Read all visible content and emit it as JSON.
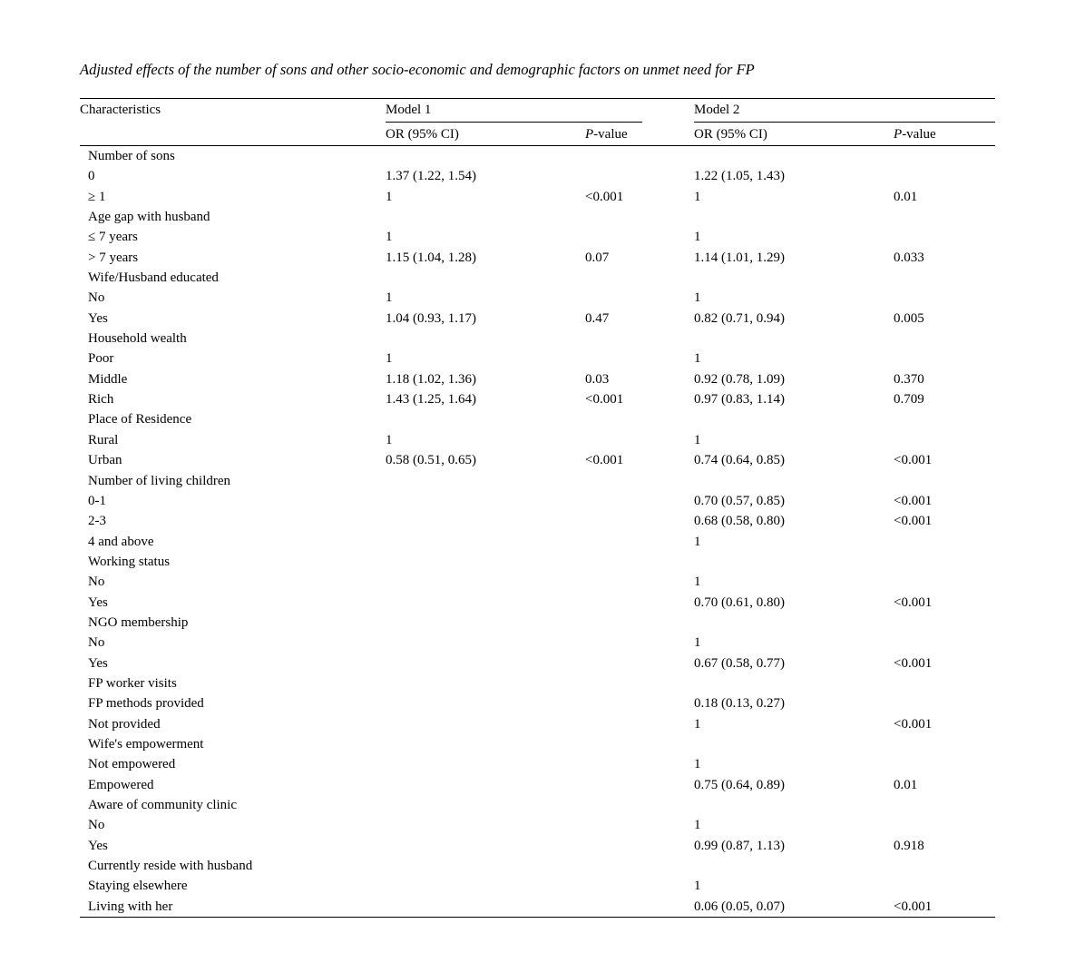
{
  "title": "Adjusted effects of the number of sons and other socio-economic and demographic factors on unmet need for FP",
  "table": {
    "header": {
      "characteristics": "Characteristics",
      "model1": "Model 1",
      "model2": "Model 2",
      "or_ci_1": "OR (95% CI)",
      "or_ci_2": "OR (95% CI)",
      "p_italic": "P",
      "p_rest": "-value"
    },
    "rows": [
      {
        "type": "category",
        "label": "Number of sons",
        "cells": [
          "",
          "",
          "",
          ""
        ]
      },
      {
        "type": "item",
        "label": "0",
        "cells": [
          "1.37 (1.22, 1.54)",
          "",
          "1.22 (1.05, 1.43)",
          ""
        ]
      },
      {
        "type": "item",
        "label": "≥ 1",
        "cells": [
          "1",
          "<0.001",
          "1",
          "0.01"
        ]
      },
      {
        "type": "category",
        "label": "Age gap with husband",
        "cells": [
          "",
          "",
          "",
          ""
        ]
      },
      {
        "type": "item",
        "label": "≤ 7 years",
        "cells": [
          "1",
          "",
          "1",
          ""
        ]
      },
      {
        "type": "item",
        "label": "> 7 years",
        "cells": [
          "1.15 (1.04, 1.28)",
          "0.07",
          "1.14 (1.01, 1.29)",
          "0.033"
        ]
      },
      {
        "type": "category",
        "label": "Wife/Husband educated",
        "cells": [
          "",
          "",
          "",
          ""
        ]
      },
      {
        "type": "item",
        "label": "No",
        "cells": [
          "1",
          "",
          "1",
          ""
        ]
      },
      {
        "type": "item",
        "label": "Yes",
        "cells": [
          "1.04 (0.93, 1.17)",
          "0.47",
          "0.82 (0.71, 0.94)",
          "0.005"
        ]
      },
      {
        "type": "category",
        "label": "Household wealth",
        "cells": [
          "",
          "",
          "",
          ""
        ]
      },
      {
        "type": "item",
        "label": "Poor",
        "cells": [
          "1",
          "",
          "1",
          ""
        ]
      },
      {
        "type": "item",
        "label": "Middle",
        "cells": [
          "1.18 (1.02, 1.36)",
          "0.03",
          "0.92 (0.78, 1.09)",
          "0.370"
        ]
      },
      {
        "type": "item",
        "label": "Rich",
        "cells": [
          "1.43 (1.25, 1.64)",
          "<0.001",
          "0.97 (0.83, 1.14)",
          "0.709"
        ]
      },
      {
        "type": "category",
        "label": "Place of Residence",
        "cells": [
          "",
          "",
          "",
          ""
        ]
      },
      {
        "type": "item",
        "label": "Rural",
        "cells": [
          "1",
          "",
          "1",
          ""
        ]
      },
      {
        "type": "item",
        "label": "Urban",
        "cells": [
          "0.58 (0.51, 0.65)",
          "<0.001",
          "0.74 (0.64, 0.85)",
          "<0.001"
        ]
      },
      {
        "type": "category",
        "label": "Number of living children",
        "cells": [
          "",
          "",
          "",
          ""
        ]
      },
      {
        "type": "item",
        "label": "0-1",
        "cells": [
          "",
          "",
          "0.70 (0.57, 0.85)",
          "<0.001"
        ]
      },
      {
        "type": "item",
        "label": "2-3",
        "cells": [
          "",
          "",
          "0.68 (0.58, 0.80)",
          "<0.001"
        ]
      },
      {
        "type": "item",
        "label": "4 and above",
        "cells": [
          "",
          "",
          "1",
          ""
        ]
      },
      {
        "type": "category",
        "label": "Working status",
        "cells": [
          "",
          "",
          "",
          ""
        ]
      },
      {
        "type": "item",
        "label": "No",
        "cells": [
          "",
          "",
          "1",
          ""
        ]
      },
      {
        "type": "item",
        "label": "Yes",
        "cells": [
          "",
          "",
          "0.70 (0.61, 0.80)",
          "<0.001"
        ]
      },
      {
        "type": "category",
        "label": "NGO membership",
        "cells": [
          "",
          "",
          "",
          ""
        ]
      },
      {
        "type": "item",
        "label": "No",
        "cells": [
          "",
          "",
          "1",
          ""
        ]
      },
      {
        "type": "item",
        "label": "Yes",
        "cells": [
          "",
          "",
          "0.67 (0.58, 0.77)",
          "<0.001"
        ]
      },
      {
        "type": "category",
        "label": "FP worker visits",
        "cells": [
          "",
          "",
          "",
          ""
        ]
      },
      {
        "type": "item",
        "label": "FP methods provided",
        "cells": [
          "",
          "",
          "0.18 (0.13, 0.27)",
          ""
        ]
      },
      {
        "type": "item",
        "label": "Not provided",
        "cells": [
          "",
          "",
          "1",
          "<0.001"
        ]
      },
      {
        "type": "category",
        "label": "Wife's empowerment",
        "cells": [
          "",
          "",
          "",
          ""
        ]
      },
      {
        "type": "item",
        "label": "Not empowered",
        "cells": [
          "",
          "",
          "1",
          ""
        ]
      },
      {
        "type": "item",
        "label": "Empowered",
        "cells": [
          "",
          "",
          "0.75 (0.64, 0.89)",
          "0.01"
        ]
      },
      {
        "type": "category",
        "label": "Aware of community clinic",
        "cells": [
          "",
          "",
          "",
          ""
        ]
      },
      {
        "type": "item",
        "label": "No",
        "cells": [
          "",
          "",
          "1",
          ""
        ]
      },
      {
        "type": "item",
        "label": "Yes",
        "cells": [
          "",
          "",
          "0.99 (0.87, 1.13)",
          "0.918"
        ]
      },
      {
        "type": "category",
        "label": "Currently reside with husband",
        "cells": [
          "",
          "",
          "",
          ""
        ]
      },
      {
        "type": "item",
        "label": "Staying elsewhere",
        "cells": [
          "",
          "",
          "1",
          ""
        ]
      },
      {
        "type": "item",
        "label": "Living with her",
        "cells": [
          "",
          "",
          "0.06 (0.05, 0.07)",
          "<0.001"
        ]
      }
    ]
  }
}
